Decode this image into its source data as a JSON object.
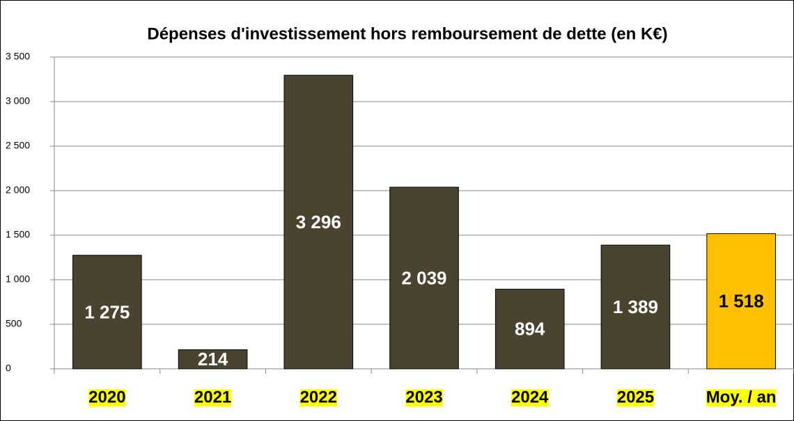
{
  "chart_data": {
    "type": "bar",
    "title": "Dépenses d'investissement hors remboursement de dette (en K€)",
    "categories": [
      "2020",
      "2021",
      "2022",
      "2023",
      "2024",
      "2025",
      "Moy. / an"
    ],
    "values": [
      1275,
      214,
      3296,
      2039,
      894,
      1389,
      1518
    ],
    "value_labels": [
      "1 275",
      "214",
      "3 296",
      "2 039",
      "894",
      "1 389",
      "1 518"
    ],
    "colors": [
      "#4a4330",
      "#4a4330",
      "#4a4330",
      "#4a4330",
      "#4a4330",
      "#4a4330",
      "#ffc000"
    ],
    "ylim": [
      0,
      3500
    ],
    "yticks": [
      0,
      500,
      {
        "value": 1000,
        "label": "1 000"
      },
      {
        "value": 1500,
        "label": "1 500"
      },
      {
        "value": 2000,
        "label": "2 000"
      },
      {
        "value": 2500,
        "label": "2 500"
      },
      {
        "value": 3000,
        "label": "3 000"
      },
      {
        "value": 3500,
        "label": "3 500"
      }
    ],
    "grid": true
  }
}
